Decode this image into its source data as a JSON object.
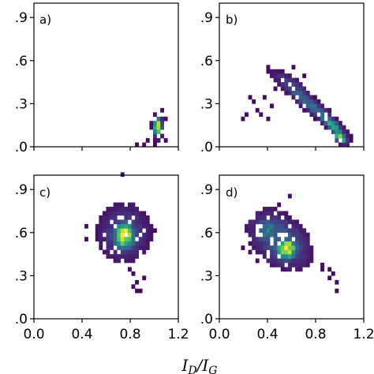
{
  "chart_data": {
    "type": "heatmap",
    "colormap": "viridis",
    "background_color": "#ffffff",
    "shared_axes": {
      "xlabel": "I_D/I_G",
      "x_ticks": [
        "0.0",
        "0.4",
        "0.8",
        "1.2"
      ],
      "y_ticks": [
        ".0",
        ".3",
        ".6",
        ".9"
      ],
      "xlim": [
        0.0,
        1.2
      ],
      "ylim": [
        0.0,
        1.0
      ]
    },
    "panels": [
      {
        "label": "a)",
        "bin_size": 0.03,
        "clusters": [
          {
            "x": 1.03,
            "y": 0.14,
            "sx": 0.022,
            "sy": 0.04,
            "peak": 1.0,
            "extent": 2.6,
            "rot": 0
          }
        ],
        "sparse_points": [
          [
            0.86,
            0.01
          ],
          [
            0.92,
            0.02
          ],
          [
            0.99,
            0.05
          ],
          [
            1.06,
            0.24
          ],
          [
            1.08,
            0.2
          ],
          [
            1.0,
            0.02
          ],
          [
            1.08,
            0.03
          ],
          [
            0.95,
            0.03
          ]
        ]
      },
      {
        "label": "b)",
        "bin_size": 0.03,
        "clusters": [
          {
            "x": 0.75,
            "y": 0.3,
            "sx": 0.2,
            "sy": 0.03,
            "peak": 0.35,
            "extent": 2.2,
            "rot": -35
          },
          {
            "x": 0.93,
            "y": 0.16,
            "sx": 0.08,
            "sy": 0.022,
            "peak": 0.7,
            "extent": 2.4,
            "rot": -38
          },
          {
            "x": 1.0,
            "y": 0.07,
            "sx": 0.04,
            "sy": 0.02,
            "peak": 0.95,
            "extent": 2.4,
            "rot": -35
          },
          {
            "x": 0.6,
            "y": 0.43,
            "sx": 0.1,
            "sy": 0.03,
            "peak": 0.25,
            "extent": 2.0,
            "rot": -30
          }
        ],
        "sparse_points": [
          [
            0.22,
            0.22
          ],
          [
            0.28,
            0.3
          ],
          [
            0.36,
            0.34
          ],
          [
            0.26,
            0.34
          ],
          [
            0.42,
            0.27
          ],
          [
            0.4,
            0.2
          ],
          [
            0.18,
            0.2
          ],
          [
            0.62,
            0.56
          ],
          [
            0.7,
            0.49
          ],
          [
            0.52,
            0.5
          ],
          [
            0.5,
            0.46
          ],
          [
            0.46,
            0.4
          ],
          [
            0.3,
            0.25
          ],
          [
            0.34,
            0.22
          ]
        ]
      },
      {
        "label": "c)",
        "bin_size": 0.03,
        "clusters": [
          {
            "x": 0.75,
            "y": 0.58,
            "sx": 0.06,
            "sy": 0.06,
            "peak": 1.0,
            "extent": 2.6,
            "rot": 0
          },
          {
            "x": 0.75,
            "y": 0.6,
            "sx": 0.13,
            "sy": 0.12,
            "peak": 0.25,
            "extent": 1.8,
            "rot": 0
          }
        ],
        "sparse_points": [
          [
            0.74,
            0.99
          ],
          [
            0.43,
            0.63
          ],
          [
            0.43,
            0.55
          ],
          [
            0.96,
            0.62
          ],
          [
            0.99,
            0.6
          ],
          [
            0.92,
            0.48
          ],
          [
            0.8,
            0.35
          ],
          [
            0.83,
            0.3
          ],
          [
            0.86,
            0.25
          ],
          [
            0.88,
            0.2
          ],
          [
            0.85,
            0.18
          ],
          [
            0.9,
            0.28
          ],
          [
            0.82,
            0.22
          ],
          [
            0.6,
            0.74
          ],
          [
            0.66,
            0.78
          ]
        ]
      },
      {
        "label": "d)",
        "bin_size": 0.03,
        "clusters": [
          {
            "x": 0.56,
            "y": 0.49,
            "sx": 0.06,
            "sy": 0.05,
            "peak": 1.0,
            "extent": 2.4,
            "rot": 0
          },
          {
            "x": 0.5,
            "y": 0.55,
            "sx": 0.16,
            "sy": 0.1,
            "peak": 0.35,
            "extent": 1.9,
            "rot": -30
          },
          {
            "x": 0.4,
            "y": 0.62,
            "sx": 0.06,
            "sy": 0.06,
            "peak": 0.45,
            "extent": 2.0,
            "rot": 0
          }
        ],
        "sparse_points": [
          [
            0.2,
            0.49
          ],
          [
            0.24,
            0.46
          ],
          [
            0.26,
            0.52
          ],
          [
            0.58,
            0.84
          ],
          [
            0.86,
            0.36
          ],
          [
            0.9,
            0.33
          ],
          [
            0.93,
            0.3
          ],
          [
            0.96,
            0.25
          ],
          [
            0.98,
            0.19
          ],
          [
            0.9,
            0.27
          ],
          [
            0.84,
            0.34
          ],
          [
            0.32,
            0.4
          ],
          [
            0.5,
            0.78
          ]
        ]
      }
    ]
  }
}
